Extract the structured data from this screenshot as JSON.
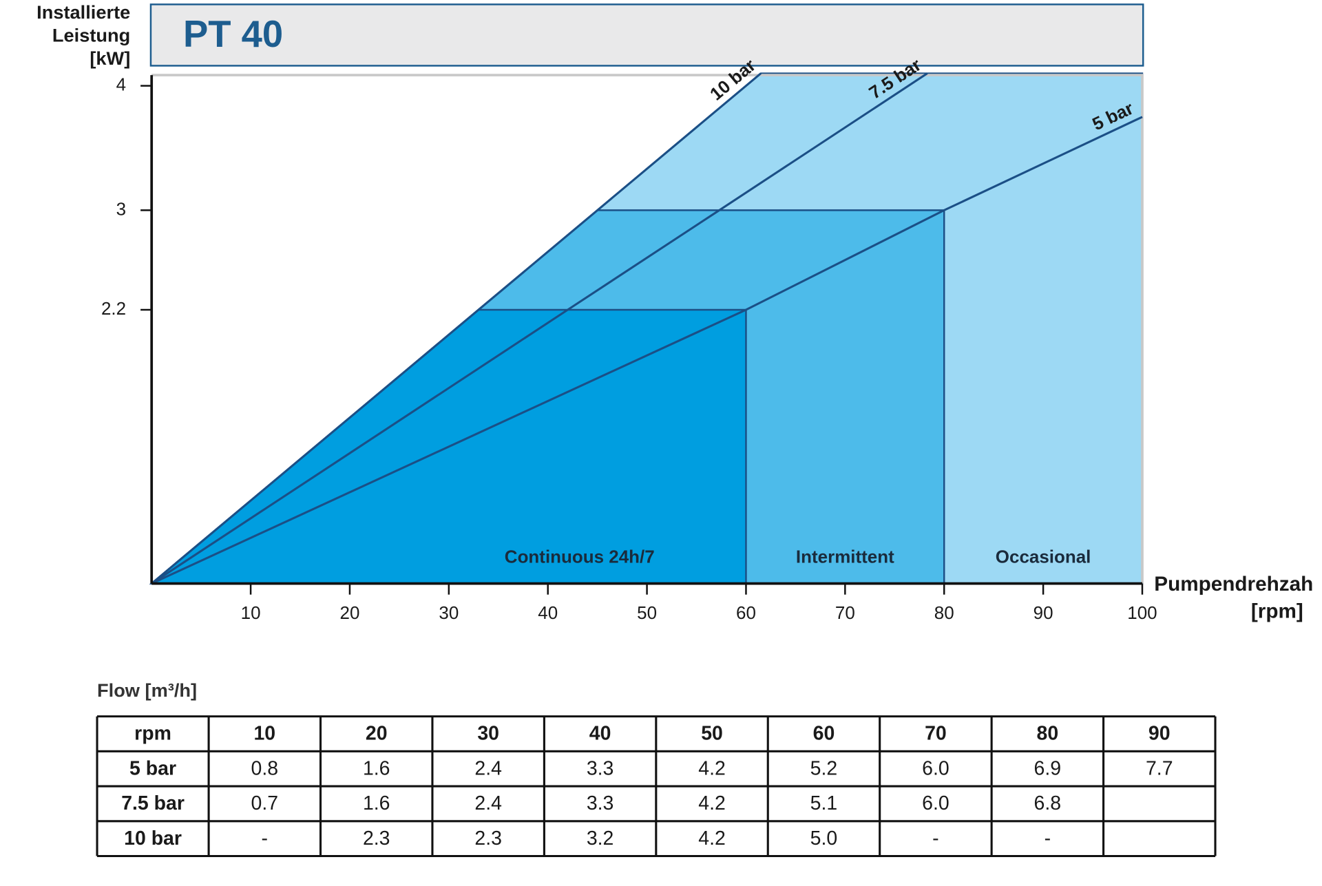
{
  "chart_data": {
    "type": "line",
    "title": "PT 40",
    "y_label": [
      "Installierte",
      "Leistung",
      "[kW]"
    ],
    "x_label": [
      "Pumpendrehzah",
      "[rpm]"
    ],
    "xlim": [
      0,
      100
    ],
    "xticks": [
      10,
      20,
      30,
      40,
      50,
      60,
      70,
      80,
      90,
      100
    ],
    "ylim": [
      0,
      4.1
    ],
    "yticks": [
      2.2,
      3,
      4
    ],
    "series": [
      {
        "name": "10 bar",
        "color": "#1b4f86",
        "x": [
          0,
          33,
          45,
          61.5
        ],
        "values": [
          0,
          2.2,
          3,
          4.1
        ]
      },
      {
        "name": "7.5 bar",
        "color": "#1b4f86",
        "x": [
          0,
          42,
          57.3,
          78.3
        ],
        "values": [
          0,
          2.2,
          3,
          4.1
        ]
      },
      {
        "name": "5 bar",
        "color": "#1b4f86",
        "x": [
          0,
          60,
          80,
          100
        ],
        "values": [
          0,
          2.2,
          3,
          3.75
        ]
      }
    ],
    "zones": [
      {
        "name": "Continuous 24h/7",
        "xmax": 60,
        "ymax": 2.2,
        "color": "#009ee0"
      },
      {
        "name": "Intermittent",
        "xmax": 80,
        "ymax": 3,
        "color": "#4dbbea"
      },
      {
        "name": "Occasional",
        "xmax": 100,
        "ymax": 4.1,
        "color": "#9dd9f4"
      }
    ]
  },
  "table": {
    "caption": "Flow [m³/h]",
    "header": [
      "rpm",
      "10",
      "20",
      "30",
      "40",
      "50",
      "60",
      "70",
      "80",
      "90"
    ],
    "rows": [
      [
        "5 bar",
        "0.8",
        "1.6",
        "2.4",
        "3.3",
        "4.2",
        "5.2",
        "6.0",
        "6.9",
        "7.7"
      ],
      [
        "7.5 bar",
        "0.7",
        "1.6",
        "2.4",
        "3.3",
        "4.2",
        "5.1",
        "6.0",
        "6.8"
      ],
      [
        "10 bar",
        "-",
        "2.3",
        "2.3",
        "3.2",
        "4.2",
        "5.0",
        "-",
        "-"
      ]
    ]
  }
}
